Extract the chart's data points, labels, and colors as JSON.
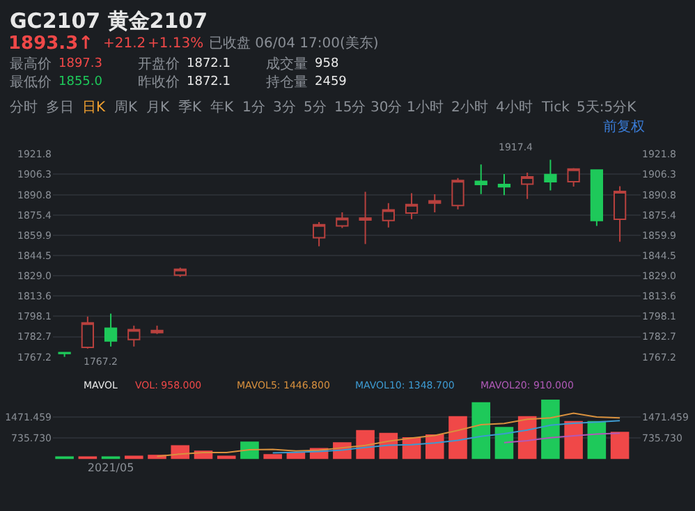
{
  "chart_data": [
    {
      "type": "candlestick",
      "title": "GC2107 黄金2107",
      "subtitle": "1893.3↑",
      "categories": [
        null,
        null,
        null,
        null,
        null,
        null,
        null,
        null,
        null,
        null,
        null,
        null,
        null,
        null,
        null,
        null,
        null,
        null,
        null,
        null,
        null,
        null,
        null,
        null,
        null
      ],
      "ohlc": [
        [
          1770.5,
          1771,
          1767.2,
          1769.8
        ],
        [
          1774.5,
          1798,
          1773.5,
          1793.2
        ],
        [
          1789.1,
          1800.2,
          1775.2,
          1779.4
        ],
        [
          1780.4,
          1791,
          1775.2,
          1788
        ],
        [
          1785.7,
          1791,
          1784.7,
          1787.4
        ],
        [
          1829.5,
          1835.2,
          1828.2,
          1834
        ],
        null,
        null,
        null,
        null,
        null,
        [
          1858,
          1870,
          1851.5,
          1868
        ],
        [
          1867,
          1877.4,
          1865.4,
          1872.9
        ],
        [
          1871.5,
          1893,
          1853.2,
          1873
        ],
        [
          1871.2,
          1884.4,
          1865.9,
          1879.2
        ],
        [
          1876.8,
          1892,
          1872.2,
          1883.3
        ],
        [
          1884.4,
          1891.2,
          1877.4,
          1886.1
        ],
        [
          1882.6,
          1903.5,
          1879.6,
          1901.7
        ],
        [
          1901,
          1913.8,
          1891.3,
          1898.6
        ],
        [
          1898.6,
          1906.5,
          1890.5,
          1896.9
        ],
        [
          1898.9,
          1907.6,
          1887.6,
          1904.4
        ],
        [
          1906.2,
          1917.4,
          1894.1,
          1900.7
        ],
        [
          1900.7,
          1911,
          1897,
          1910.4
        ],
        [
          1909.6,
          1910,
          1867,
          1871.2
        ],
        [
          1872.1,
          1897.3,
          1855,
          1893.3
        ]
      ],
      "colors": [
        "#1ec95a",
        "#b8413e",
        "#1ec95a",
        "#b8413e",
        "#b8413e",
        "#b8413e",
        null,
        null,
        null,
        null,
        null,
        "#b8413e",
        "#b8413e",
        "#b8413e",
        "#b8413e",
        "#b8413e",
        "#b8413e",
        "#b8413e",
        "#1ec95a",
        "#1ec95a",
        "#b8413e",
        "#1ec95a",
        "#b8413e",
        "#1ec95a",
        "#b8413e"
      ],
      "ylim": [
        1767.2,
        1921.8
      ],
      "yticks": [
        1767.2,
        1782.7,
        1798.1,
        1813.6,
        {
          "value": 1829,
          "label": "1829.0"
        },
        1844.5,
        1859.9,
        1875.4,
        1890.8,
        1906.3,
        1921.8
      ],
      "y2lim": [
        1767.2,
        1921.8
      ],
      "y2ticks": [
        1767.2,
        1782.7,
        1798.1,
        1813.6,
        {
          "value": 1829,
          "label": "1829.0"
        },
        1844.5,
        1859.9,
        1875.4,
        1890.8,
        1906.3,
        1921.8
      ],
      "tick_labels": "y",
      "grid": "y",
      "annotations": [
        "+21.2",
        "+1.13%",
        "已收盘 06/04 17:00(美东)",
        "最高价",
        "1897.3",
        "开盘价",
        "1872.1",
        "成交量",
        "958",
        "最低价",
        "1855.0",
        "昨收价",
        "1872.1",
        "持仓量",
        "2459",
        "分时",
        "多日",
        "日K",
        "周K",
        "月K",
        "季K",
        "年K",
        "1分",
        "3分",
        "5分",
        "15分",
        "30分",
        "1小时",
        "2小时",
        "4小时",
        "Tick",
        "5天:5分K",
        "前复权",
        "1917.4",
        "1767.2"
      ]
    },
    {
      "type": "bar",
      "categories": [
        null,
        null,
        "2021/05",
        null,
        null,
        null,
        null,
        null,
        null,
        null,
        null,
        null,
        null,
        null,
        null,
        null,
        null,
        null,
        null,
        null,
        null,
        null,
        null,
        null,
        null
      ],
      "series": [
        {
          "type": "bar",
          "colors": [
            "#1ec95a",
            "#f04848",
            "#1ec95a",
            "#f04848",
            "#f04848",
            "#f04848",
            "#f04848",
            "#f04848",
            "#1ec95a",
            "#f04848",
            "#f04848",
            "#f04848",
            "#f04848",
            "#f04848",
            "#f04848",
            "#f04848",
            "#f04848",
            "#f04848",
            "#1ec95a",
            "#1ec95a",
            "#f04848",
            "#1ec95a",
            "#f04848",
            "#1ec95a",
            "#f04848"
          ],
          "values": [
            50,
            80,
            80,
            120,
            150,
            490,
            300,
            120,
            620,
            180,
            250,
            390,
            590,
            1020,
            920,
            770,
            870,
            1510,
            2000,
            1130,
            1510,
            2090,
            1340,
            1340,
            958
          ]
        },
        {
          "type": "line",
          "color": "#d9913e",
          "values": [
            null,
            null,
            null,
            null,
            100,
            180,
            230,
            230,
            330,
            340,
            290,
            310,
            400,
            480,
            630,
            740,
            830,
            1010,
            1210,
            1250,
            1400,
            1450,
            1610,
            1480,
            1446.8
          ]
        },
        {
          "type": "line",
          "color": "#3d9ad1",
          "values": [
            null,
            null,
            null,
            null,
            null,
            null,
            null,
            null,
            null,
            220,
            240,
            270,
            320,
            410,
            490,
            510,
            570,
            660,
            800,
            890,
            1020,
            1190,
            1260,
            1300,
            1348.7
          ]
        },
        {
          "type": "line",
          "color": "#b05ab8",
          "values": [
            null,
            null,
            null,
            null,
            null,
            null,
            null,
            null,
            null,
            null,
            null,
            null,
            null,
            null,
            null,
            null,
            null,
            null,
            null,
            580,
            650,
            750,
            820,
            880,
            910
          ]
        }
      ],
      "ylim": [
        0,
        2200
      ],
      "yticks": [
        {
          "value": 735.73,
          "label": "735.730"
        },
        1471.459
      ],
      "y2lim": [
        0,
        2200
      ],
      "y2ticks": [
        {
          "value": 735.73,
          "label": "735.730"
        },
        1471.459
      ],
      "grid": "y",
      "annotations": [
        "MAVOL",
        "VOL: 958.000",
        "MAVOL5: 1446.800",
        "MAVOL10: 1348.700",
        "MAVOL20: 910.000"
      ]
    }
  ]
}
